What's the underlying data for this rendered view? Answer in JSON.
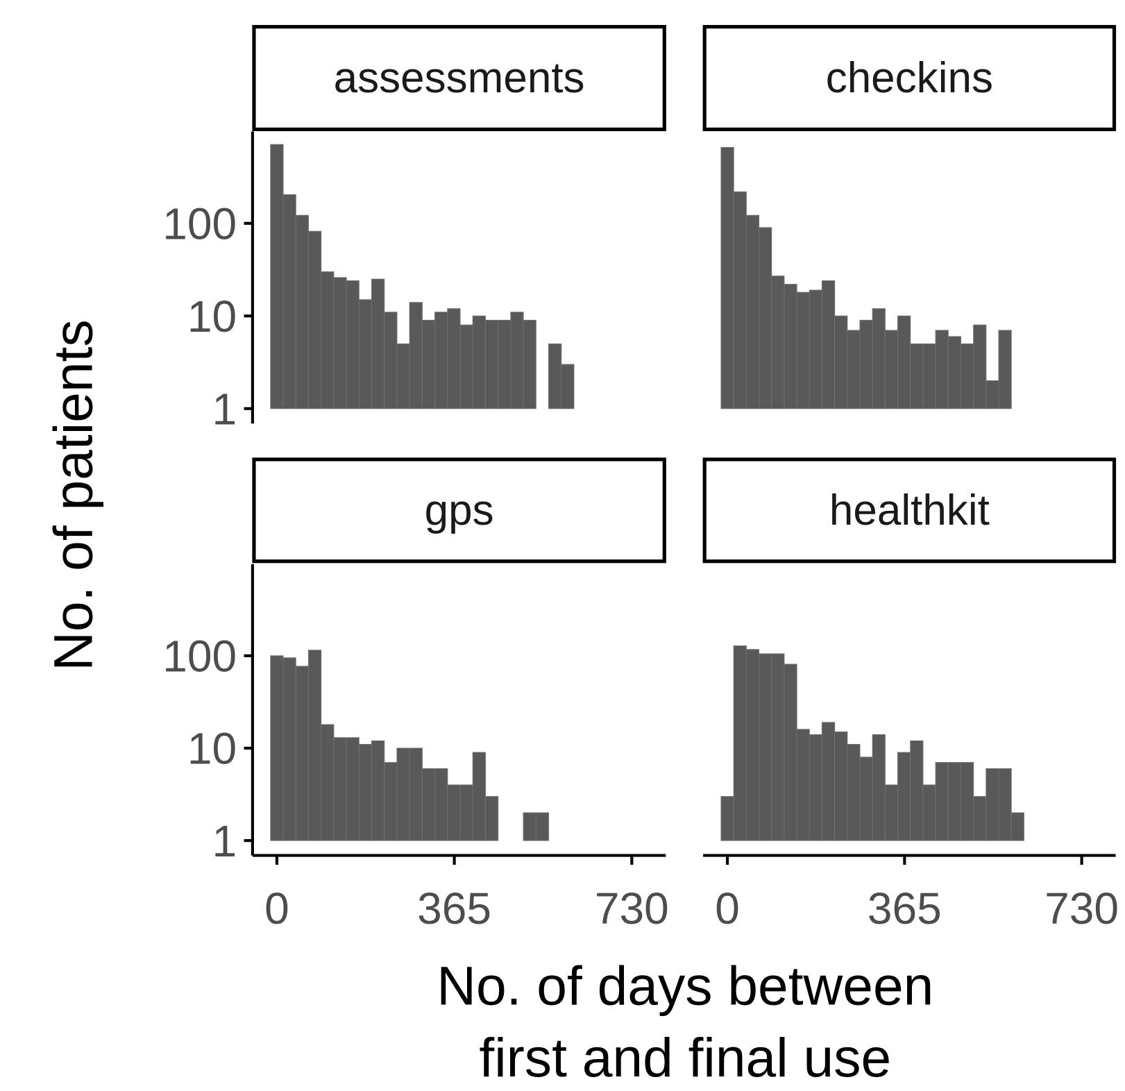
{
  "chart_data": {
    "type": "histogram",
    "x_label": [
      "No. of days between",
      "first and final use"
    ],
    "y_label": "No. of patients",
    "log_y": true,
    "color": "#595959",
    "xlim": [
      -50,
      800
    ],
    "xticks": [
      0,
      365,
      730
    ],
    "ylim": [
      0.69,
      980
    ],
    "yticks": [
      1,
      10,
      100
    ],
    "bins": [
      -13,
      13,
      39,
      65,
      91,
      117,
      143,
      169,
      195,
      221,
      247,
      273,
      299,
      325,
      351,
      377,
      403,
      429,
      455,
      481,
      507,
      533,
      559,
      585,
      611
    ],
    "panels": [
      {
        "title": "assessments",
        "values": [
          710,
          204,
          122,
          82,
          30,
          26,
          24,
          15,
          25,
          11,
          5,
          14,
          9,
          11,
          12,
          8,
          10,
          9,
          9,
          11,
          9,
          null,
          5,
          3
        ]
      },
      {
        "title": "checkins",
        "values": [
          660,
          219,
          122,
          90,
          27,
          22,
          18,
          19,
          24,
          10,
          7,
          9,
          12,
          7,
          10,
          5,
          5,
          7,
          6,
          5,
          8,
          2,
          7,
          null
        ]
      },
      {
        "title": "gps",
        "values": [
          100,
          95,
          77,
          115,
          18,
          13,
          13,
          11,
          12,
          7,
          10,
          10,
          6,
          6,
          4,
          4,
          9,
          3,
          null,
          null,
          2,
          2,
          null,
          null
        ]
      },
      {
        "title": "healthkit",
        "values": [
          3,
          128,
          117,
          105,
          105,
          81,
          16,
          14,
          19,
          15,
          11,
          8,
          14,
          4,
          9,
          12,
          4,
          7,
          7,
          7,
          3,
          6,
          6,
          2
        ]
      }
    ]
  }
}
